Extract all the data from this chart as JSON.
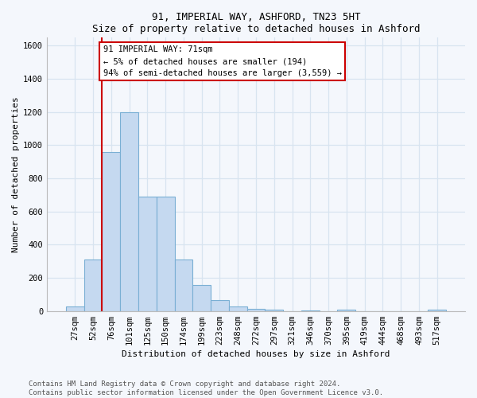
{
  "title1": "91, IMPERIAL WAY, ASHFORD, TN23 5HT",
  "title2": "Size of property relative to detached houses in Ashford",
  "xlabel": "Distribution of detached houses by size in Ashford",
  "ylabel": "Number of detached properties",
  "categories": [
    "27sqm",
    "52sqm",
    "76sqm",
    "101sqm",
    "125sqm",
    "150sqm",
    "174sqm",
    "199sqm",
    "223sqm",
    "248sqm",
    "272sqm",
    "297sqm",
    "321sqm",
    "346sqm",
    "370sqm",
    "395sqm",
    "419sqm",
    "444sqm",
    "468sqm",
    "493sqm",
    "517sqm"
  ],
  "values": [
    25,
    310,
    960,
    1200,
    690,
    690,
    310,
    155,
    65,
    25,
    15,
    10,
    0,
    5,
    0,
    10,
    0,
    0,
    0,
    0,
    10
  ],
  "bar_color": "#c5d9f0",
  "bar_edge_color": "#7aafd4",
  "vline_color": "#cc0000",
  "annotation_text": "91 IMPERIAL WAY: 71sqm\n← 5% of detached houses are smaller (194)\n94% of semi-detached houses are larger (3,559) →",
  "annotation_box_facecolor": "#ffffff",
  "annotation_box_edgecolor": "#cc0000",
  "ylim": [
    0,
    1650
  ],
  "yticks": [
    0,
    200,
    400,
    600,
    800,
    1000,
    1200,
    1400,
    1600
  ],
  "footer1": "Contains HM Land Registry data © Crown copyright and database right 2024.",
  "footer2": "Contains public sector information licensed under the Open Government Licence v3.0.",
  "bg_color": "#f4f7fc",
  "grid_color": "#d8e4f0",
  "title_fontsize": 9,
  "axis_fontsize": 8,
  "tick_fontsize": 7.5,
  "footer_fontsize": 6.5
}
